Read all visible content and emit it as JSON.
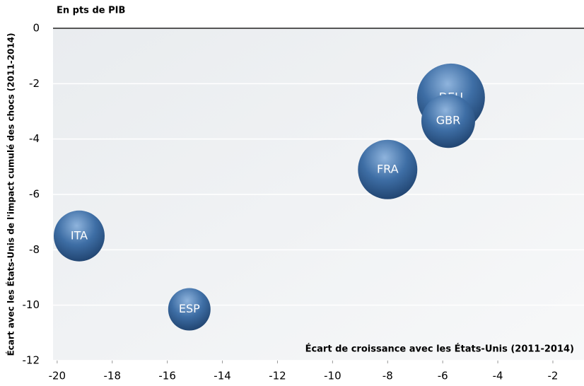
{
  "chart_data": {
    "type": "scatter",
    "title": "En pts de PIB",
    "x_label": "Écart de croissance avec les États-Unis (2011-2014)",
    "y_label": "Écart avec les États-Unis de l'impact cumulé des chocs (2011-2014)",
    "labels": [
      "DEU",
      "GBR",
      "FRA",
      "ITA",
      "ESP"
    ],
    "x": [
      -5.7,
      -5.8,
      -8.0,
      -19.2,
      -15.2
    ],
    "values": [
      -2.5,
      -3.35,
      -5.1,
      -7.5,
      -10.15
    ],
    "sizes": [
      48,
      38,
      42,
      36,
      30
    ],
    "color": "#3a6fa8",
    "xlim": [
      -20.15,
      -0.87
    ],
    "ylim": [
      -12,
      0
    ],
    "xticks": [
      -20,
      -18,
      -16,
      -14,
      -12,
      -10,
      -8,
      -6,
      -4,
      -2
    ],
    "yticks": [
      0,
      -2,
      -4,
      -6,
      -8,
      -10,
      -12
    ],
    "grid": true
  }
}
